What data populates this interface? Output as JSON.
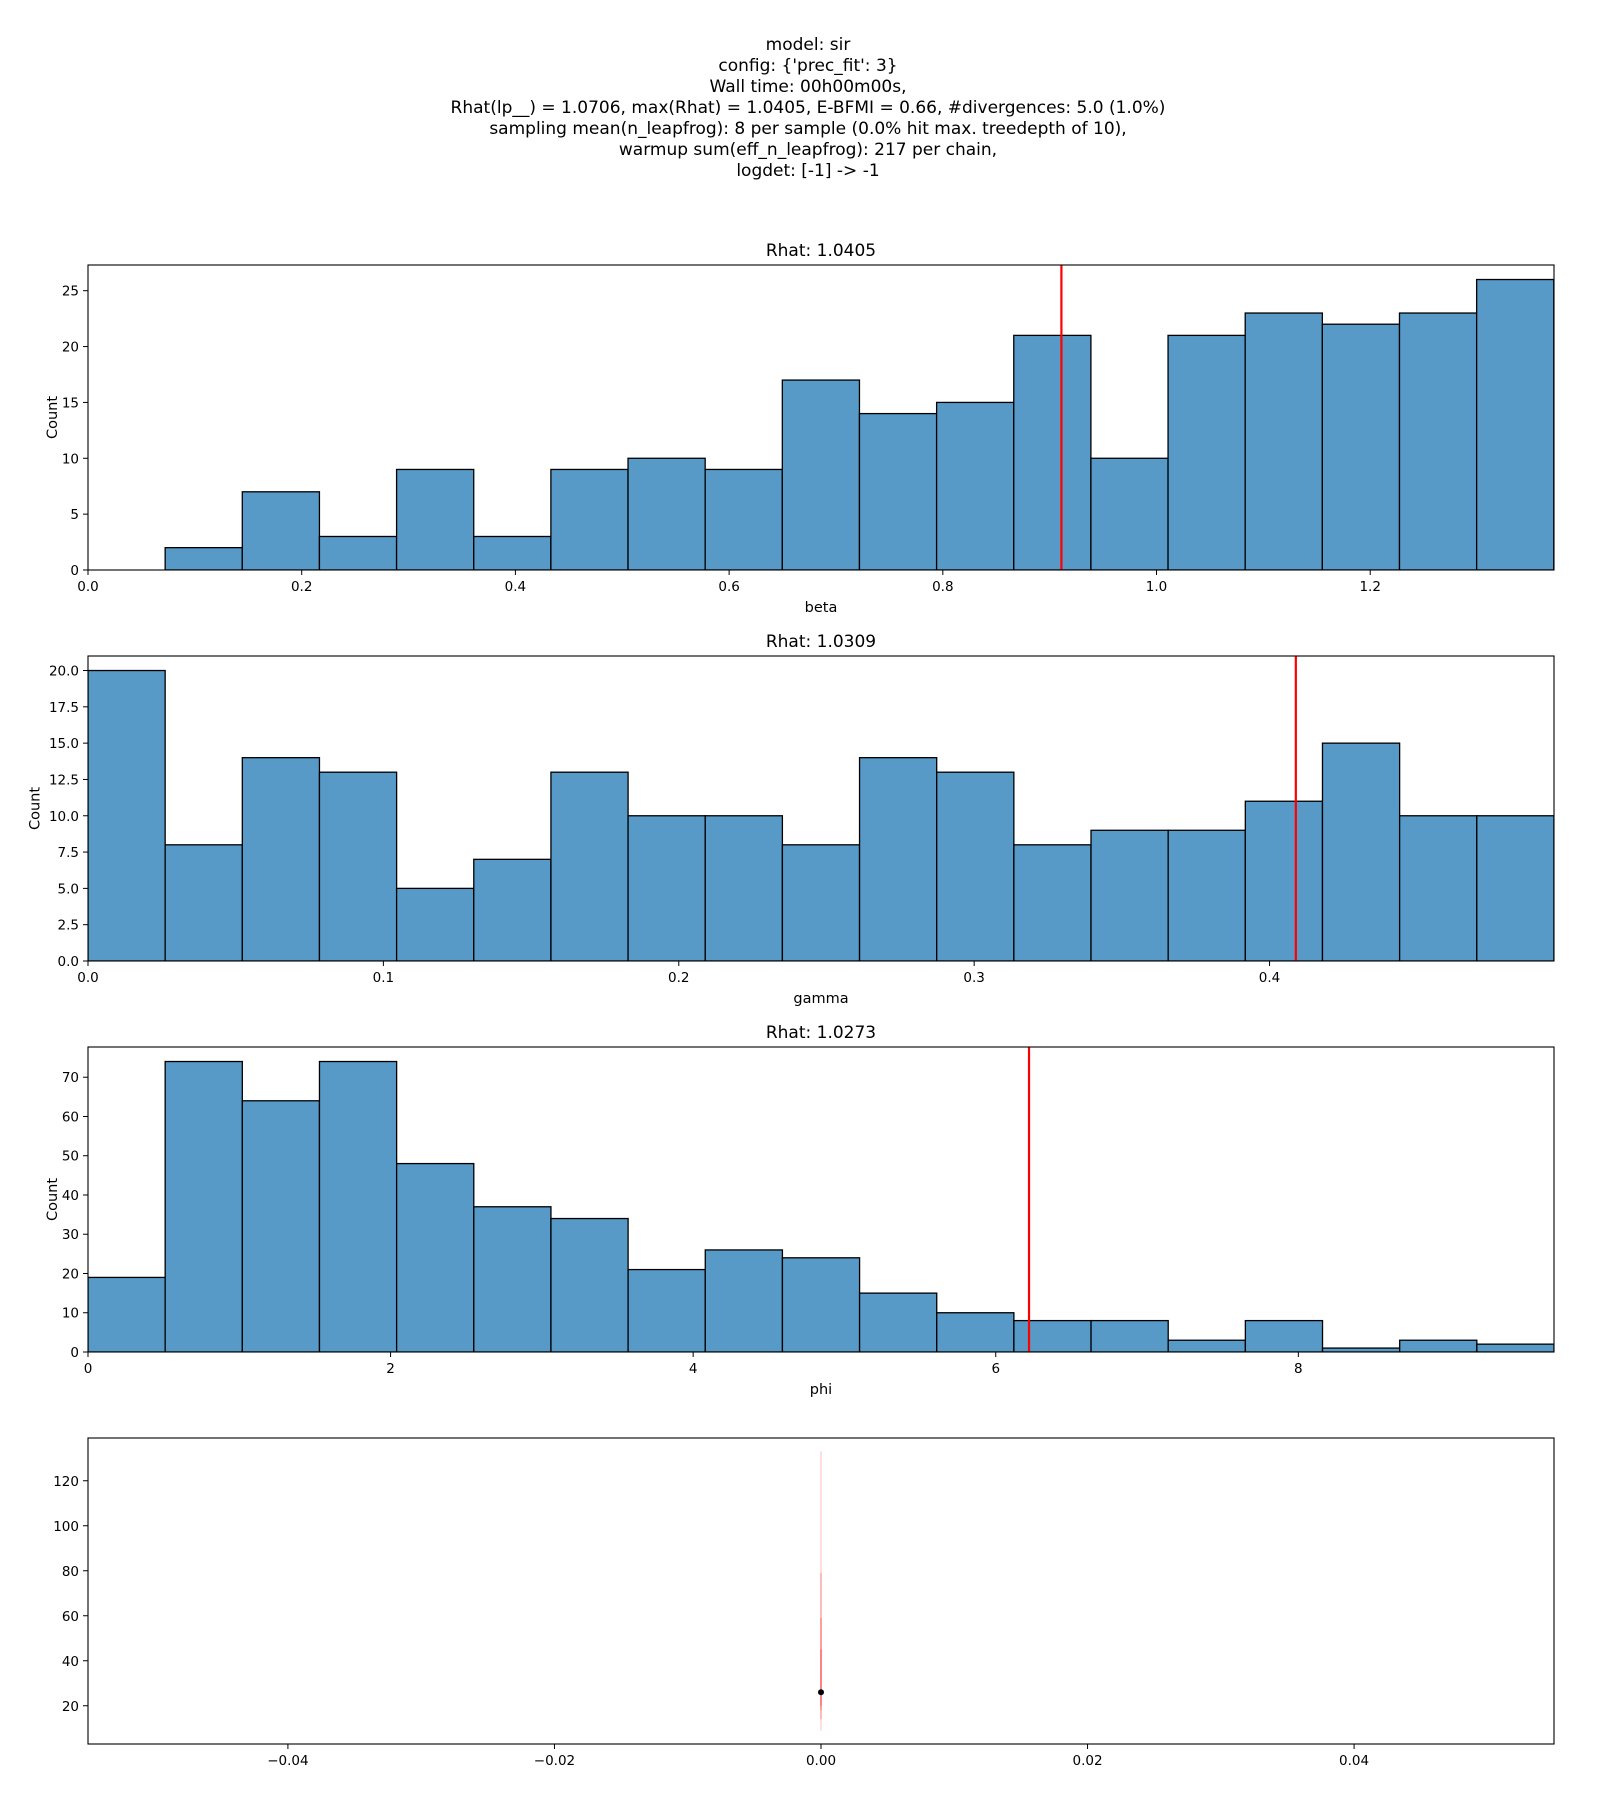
{
  "suptitle": [
    "model: sir",
    "config: {'prec_fit': 3}",
    "Wall time: 00h00m00s,",
    "Rhat(lp__) = 1.0706, max(Rhat) = 1.0405, E-BFMI = 0.66, #divergences: 5.0 (1.0%)",
    "sampling mean(n_leapfrog): 8 per sample (0.0% hit max. treedepth of 10),",
    "warmup sum(eff_n_leapfrog): 217 per chain,",
    "logdet: [-1] -> -1"
  ],
  "colors": {
    "bar_fill": "#5799c7",
    "bar_edge": "#000000",
    "marker_line": "#ff0000",
    "point": "#000000"
  },
  "chart_data": [
    {
      "type": "bar",
      "title": "Rhat: 1.0405",
      "xlabel": "beta",
      "ylabel": "Count",
      "xlim": [
        0.0,
        1.372
      ],
      "ylim": [
        0,
        27.3
      ],
      "bin_start": 0.0,
      "bin_width": 0.0722,
      "values": [
        0,
        2,
        7,
        3,
        9,
        3,
        9,
        10,
        9,
        17,
        14,
        15,
        21,
        10,
        21,
        23,
        22,
        23,
        26
      ],
      "marker_x": 0.911,
      "xticks": [
        0.0,
        0.2,
        0.4,
        0.6,
        0.8,
        1.0,
        1.2
      ],
      "xtick_labels": [
        "0.0",
        "0.2",
        "0.4",
        "0.6",
        "0.8",
        "1.0",
        "1.2"
      ],
      "yticks": [
        0,
        5,
        10,
        15,
        20,
        25
      ],
      "ytick_labels": [
        "0",
        "5",
        "10",
        "15",
        "20",
        "25"
      ],
      "grid": false
    },
    {
      "type": "bar",
      "title": "Rhat: 1.0309",
      "xlabel": "gamma",
      "ylabel": "Count",
      "xlim": [
        0.0,
        0.4963
      ],
      "ylim": [
        0,
        21.0
      ],
      "bin_start": 0.0,
      "bin_width": 0.02612,
      "values": [
        20,
        8,
        14,
        13,
        5,
        7,
        13,
        10,
        10,
        8,
        14,
        13,
        8,
        9,
        9,
        11,
        15,
        10,
        10
      ],
      "marker_x": 0.4089,
      "xticks": [
        0.0,
        0.1,
        0.2,
        0.3,
        0.4
      ],
      "xtick_labels": [
        "0.0",
        "0.1",
        "0.2",
        "0.3",
        "0.4"
      ],
      "yticks": [
        0.0,
        2.5,
        5.0,
        7.5,
        10.0,
        12.5,
        15.0,
        17.5,
        20.0
      ],
      "ytick_labels": [
        "0.0",
        "2.5",
        "5.0",
        "7.5",
        "10.0",
        "12.5",
        "15.0",
        "17.5",
        "20.0"
      ],
      "grid": false
    },
    {
      "type": "bar",
      "title": "Rhat: 1.0273",
      "xlabel": "phi",
      "ylabel": "Count",
      "xlim": [
        0.0,
        9.69
      ],
      "ylim": [
        0,
        77.7
      ],
      "bin_start": 0.0,
      "bin_width": 0.51,
      "values": [
        19,
        74,
        64,
        74,
        48,
        37,
        34,
        21,
        26,
        24,
        15,
        10,
        8,
        8,
        3,
        8,
        1,
        3,
        2
      ],
      "marker_x": 6.22,
      "xticks": [
        0,
        2,
        4,
        6,
        8
      ],
      "xtick_labels": [
        "0",
        "2",
        "4",
        "6",
        "8"
      ],
      "yticks": [
        0,
        10,
        20,
        30,
        40,
        50,
        60,
        70
      ],
      "ytick_labels": [
        "0",
        "10",
        "20",
        "30",
        "40",
        "50",
        "60",
        "70"
      ],
      "grid": false
    },
    {
      "type": "scatter",
      "title": "",
      "xlabel": "",
      "ylabel": "",
      "xlim": [
        -0.055,
        0.055
      ],
      "ylim": [
        3,
        139
      ],
      "points": [
        {
          "x": 0.0,
          "y": 26
        }
      ],
      "vertical_segments": [
        {
          "x": 0.0,
          "y0": 9,
          "y1": 133,
          "opacity": 0.22
        },
        {
          "x": 0.0,
          "y0": 14,
          "y1": 79,
          "opacity": 0.28
        },
        {
          "x": 0.0,
          "y0": 18,
          "y1": 59,
          "opacity": 0.32
        },
        {
          "x": 0.0,
          "y0": 20,
          "y1": 45,
          "opacity": 0.38
        }
      ],
      "xticks": [
        -0.04,
        -0.02,
        0.0,
        0.02,
        0.04
      ],
      "xtick_labels": [
        "−0.04",
        "−0.02",
        "0.00",
        "0.02",
        "0.04"
      ],
      "yticks": [
        20,
        40,
        60,
        80,
        100,
        120
      ],
      "ytick_labels": [
        "20",
        "40",
        "60",
        "80",
        "100",
        "120"
      ],
      "grid": false
    }
  ]
}
